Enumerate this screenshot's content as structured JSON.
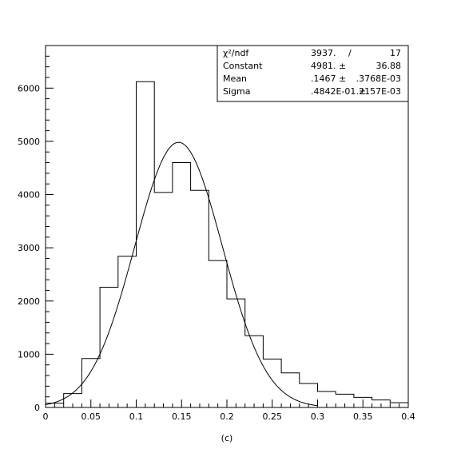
{
  "chart_data": {
    "type": "histogram",
    "caption": "(c)",
    "xlim": [
      0,
      0.4
    ],
    "ylim": [
      0,
      6800
    ],
    "grid": false,
    "x_ticks": [
      {
        "value": 0,
        "label": "0"
      },
      {
        "value": 0.05,
        "label": "0.05"
      },
      {
        "value": 0.1,
        "label": "0.1"
      },
      {
        "value": 0.15,
        "label": "0.15"
      },
      {
        "value": 0.2,
        "label": "0.2"
      },
      {
        "value": 0.25,
        "label": "0.25"
      },
      {
        "value": 0.3,
        "label": "0.3"
      },
      {
        "value": 0.35,
        "label": "0.35"
      },
      {
        "value": 0.4,
        "label": "0.4"
      }
    ],
    "y_ticks": [
      {
        "value": 0,
        "label": "0"
      },
      {
        "value": 1000,
        "label": "1000"
      },
      {
        "value": 2000,
        "label": "2000"
      },
      {
        "value": 3000,
        "label": "3000"
      },
      {
        "value": 4000,
        "label": "4000"
      },
      {
        "value": 5000,
        "label": "5000"
      },
      {
        "value": 6000,
        "label": "6000"
      }
    ],
    "bin_edges": [
      0,
      0.02,
      0.04,
      0.06,
      0.08,
      0.1,
      0.12,
      0.14,
      0.16,
      0.18,
      0.2,
      0.22,
      0.24,
      0.26,
      0.28,
      0.3,
      0.32,
      0.34,
      0.36,
      0.38,
      0.4
    ],
    "bin_counts": [
      80,
      260,
      920,
      2260,
      2840,
      6120,
      4040,
      4600,
      4080,
      2760,
      2040,
      1350,
      910,
      650,
      450,
      300,
      250,
      190,
      140,
      90
    ],
    "fit": {
      "function": "gaussian",
      "constant": 4981,
      "mean": 0.1467,
      "sigma": 0.04842,
      "x_range": [
        0,
        0.3
      ]
    },
    "stats_box": {
      "rows": [
        {
          "label": "χ²/ndf",
          "value": "3937.",
          "sep": "/",
          "error": "17"
        },
        {
          "label": "Constant",
          "value": "4981. ±",
          "error": "36.88"
        },
        {
          "label": "Mean",
          "value": ".1467 ±",
          "error": ".3768E-03"
        },
        {
          "label": "Sigma",
          "value": ".4842E-01 ±",
          "error": ".2157E-03"
        }
      ]
    }
  }
}
